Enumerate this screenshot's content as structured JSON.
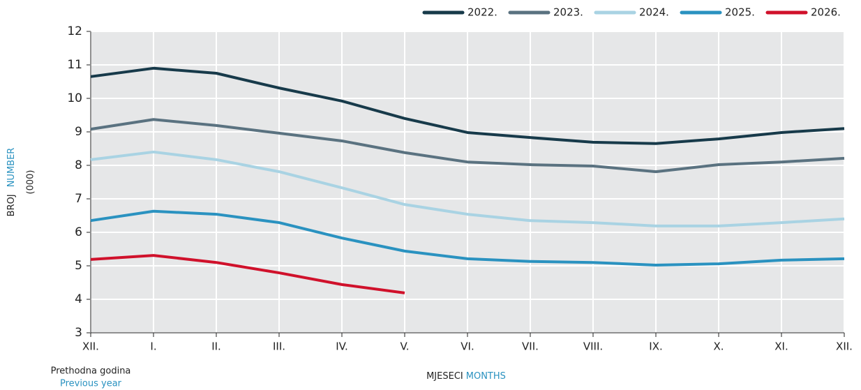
{
  "chart_data": {
    "type": "line",
    "categories": [
      "XII.",
      "I.",
      "II.",
      "III.",
      "IV.",
      "V.",
      "VI.",
      "VII.",
      "VIII.",
      "IX.",
      "X.",
      "XI.",
      "XII."
    ],
    "series": [
      {
        "name": "2022.",
        "color": "#173a4a",
        "values": [
          10.65,
          10.9,
          10.75,
          10.31,
          9.92,
          9.4,
          8.98,
          8.83,
          8.69,
          8.65,
          8.79,
          8.98,
          9.1
        ]
      },
      {
        "name": "2023.",
        "color": "#5a7280",
        "values": [
          9.08,
          9.37,
          9.19,
          8.96,
          8.73,
          8.38,
          8.1,
          8.02,
          7.98,
          7.81,
          8.02,
          8.1,
          8.21
        ]
      },
      {
        "name": "2024.",
        "color": "#a9d3e3",
        "values": [
          8.17,
          8.4,
          8.17,
          7.81,
          7.33,
          6.83,
          6.54,
          6.35,
          6.29,
          6.19,
          6.19,
          6.29,
          6.4
        ]
      },
      {
        "name": "2025.",
        "color": "#2a92c0",
        "values": [
          6.35,
          6.63,
          6.54,
          6.29,
          5.83,
          5.44,
          5.21,
          5.13,
          5.1,
          5.02,
          5.06,
          5.17,
          5.21
        ]
      },
      {
        "name": "2026.",
        "color": "#d0112b",
        "values": [
          5.19,
          5.31,
          5.1,
          4.79,
          4.44,
          4.19,
          null,
          null,
          null,
          null,
          null,
          null,
          null
        ]
      }
    ],
    "ylim": [
      3,
      12
    ],
    "yticks": [
      3,
      4,
      5,
      6,
      7,
      8,
      9,
      10,
      11,
      12
    ],
    "grid": true,
    "legend": "top-right",
    "y_label": "BROJ",
    "y_label_en": "NUMBER",
    "y_unit": "(000)",
    "x_label": "MJESECI",
    "x_label_en": "MONTHS",
    "note": "Prethodna godina",
    "note_en": "Previous year"
  }
}
